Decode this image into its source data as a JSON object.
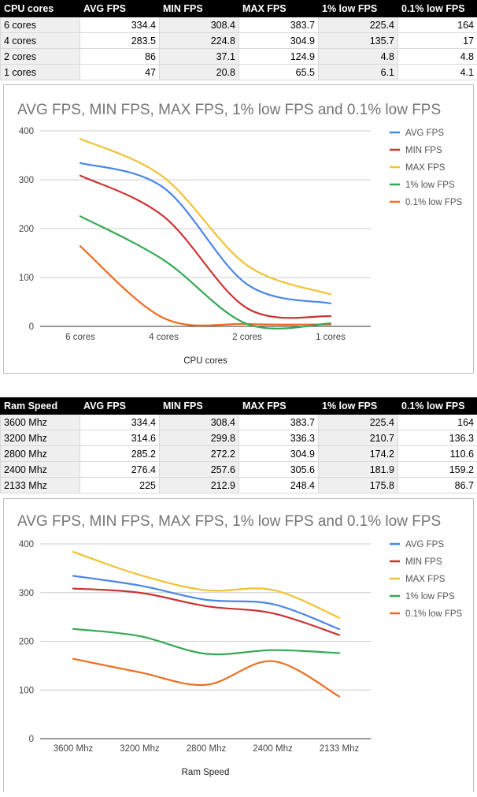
{
  "tables": [
    {
      "headers": [
        "CPU cores",
        "AVG FPS",
        "MIN FPS",
        "MAX FPS",
        "1% low FPS",
        "0.1% low FPS"
      ],
      "rows": [
        [
          "6 cores",
          "334.4",
          "308.4",
          "383.7",
          "225.4",
          "164"
        ],
        [
          "4 cores",
          "283.5",
          "224.8",
          "304.9",
          "135.7",
          "17"
        ],
        [
          "2 cores",
          "86",
          "37.1",
          "124.9",
          "4.8",
          "4.8"
        ],
        [
          "1 cores",
          "47",
          "20.8",
          "65.5",
          "6.1",
          "4.1"
        ]
      ]
    },
    {
      "headers": [
        "Ram Speed",
        "AVG FPS",
        "MIN FPS",
        "MAX FPS",
        "1% low FPS",
        "0.1% low FPS"
      ],
      "rows": [
        [
          "3600 Mhz",
          "334.4",
          "308.4",
          "383.7",
          "225.4",
          "164"
        ],
        [
          "3200 Mhz",
          "314.6",
          "299.8",
          "336.3",
          "210.7",
          "136.3"
        ],
        [
          "2800 Mhz",
          "285.2",
          "272.2",
          "304.9",
          "174.2",
          "110.6"
        ],
        [
          "2400 Mhz",
          "276.4",
          "257.6",
          "305.6",
          "181.9",
          "159.2"
        ],
        [
          "2133 Mhz",
          "225",
          "212.9",
          "248.4",
          "175.8",
          "86.7"
        ]
      ]
    }
  ],
  "chart_data": [
    {
      "type": "line",
      "title": "AVG FPS, MIN FPS, MAX FPS, 1% low FPS and 0.1% low FPS",
      "xlabel": "CPU cores",
      "ylabel": "",
      "categories": [
        "6 cores",
        "4 cores",
        "2 cores",
        "1 cores"
      ],
      "ylim": [
        0,
        400
      ],
      "yticks": [
        "0",
        "100",
        "200",
        "300",
        "400"
      ],
      "grid": true,
      "legend": "right",
      "series": [
        {
          "name": "AVG FPS",
          "color": "#4a86e8",
          "values": [
            334.4,
            283.5,
            86,
            47
          ]
        },
        {
          "name": "MIN FPS",
          "color": "#cc3333",
          "values": [
            308.4,
            224.8,
            37.1,
            20.8
          ]
        },
        {
          "name": "MAX FPS",
          "color": "#f1c232",
          "values": [
            383.7,
            304.9,
            124.9,
            65.5
          ]
        },
        {
          "name": "1% low FPS",
          "color": "#34a853",
          "values": [
            225.4,
            135.7,
            4.8,
            6.1
          ]
        },
        {
          "name": "0.1% low FPS",
          "color": "#ee6c1f",
          "values": [
            164,
            17,
            4.8,
            4.1
          ]
        }
      ]
    },
    {
      "type": "line",
      "title": "AVG FPS, MIN FPS, MAX FPS, 1% low FPS and 0.1% low FPS",
      "xlabel": "Ram Speed",
      "ylabel": "",
      "categories": [
        "3600 Mhz",
        "3200 Mhz",
        "2800 Mhz",
        "2400 Mhz",
        "2133 Mhz"
      ],
      "ylim": [
        0,
        400
      ],
      "yticks": [
        "0",
        "100",
        "200",
        "300",
        "400"
      ],
      "grid": true,
      "legend": "right",
      "series": [
        {
          "name": "AVG FPS",
          "color": "#4a86e8",
          "values": [
            334.4,
            314.6,
            285.2,
            276.4,
            225
          ]
        },
        {
          "name": "MIN FPS",
          "color": "#cc3333",
          "values": [
            308.4,
            299.8,
            272.2,
            257.6,
            212.9
          ]
        },
        {
          "name": "MAX FPS",
          "color": "#f1c232",
          "values": [
            383.7,
            336.3,
            304.9,
            305.6,
            248.4
          ]
        },
        {
          "name": "1% low FPS",
          "color": "#34a853",
          "values": [
            225.4,
            210.7,
            174.2,
            181.9,
            175.8
          ]
        },
        {
          "name": "0.1% low FPS",
          "color": "#ee6c1f",
          "values": [
            164,
            136.3,
            110.6,
            159.2,
            86.7
          ]
        }
      ]
    }
  ]
}
